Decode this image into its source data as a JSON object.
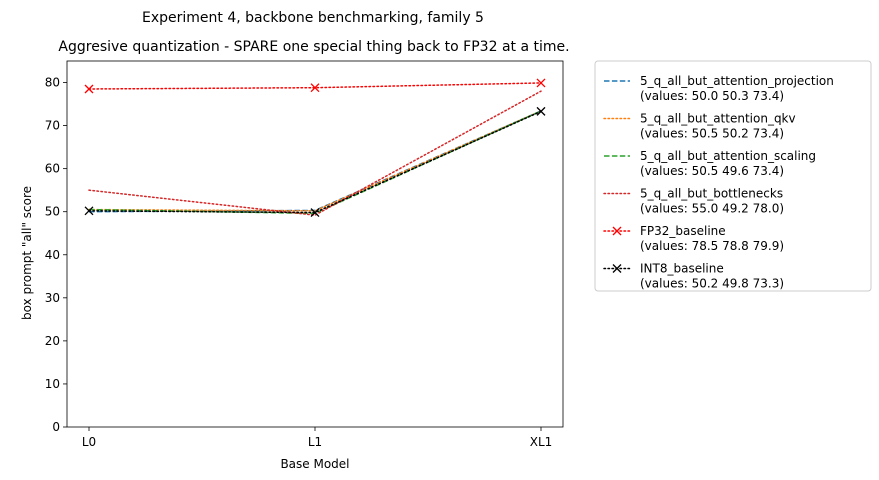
{
  "chart_data": {
    "type": "line",
    "suptitle": "Experiment 4, backbone benchmarking, family 5",
    "title": "Aggresive quantization - SPARE one special thing back to FP32 at a time.",
    "xlabel": "Base Model",
    "ylabel": "box prompt \"all\" score",
    "categories": [
      "L0",
      "L1",
      "XL1"
    ],
    "ylim": [
      0,
      85
    ],
    "yticks": [
      0,
      10,
      20,
      30,
      40,
      50,
      60,
      70,
      80
    ],
    "grid": false,
    "legend_position": "outside-upper-right",
    "series": [
      {
        "name": "5_q_all_but_attention_projection",
        "legend_values": "(values: 50.0 50.3 73.4)",
        "values": [
          50.0,
          50.3,
          73.4
        ],
        "color": "#1f77b4",
        "dash": "dashed",
        "marker": "none"
      },
      {
        "name": "5_q_all_but_attention_qkv",
        "legend_values": "(values: 50.5 50.2 73.4)",
        "values": [
          50.5,
          50.2,
          73.4
        ],
        "color": "#ff7f0e",
        "dash": "dotted",
        "marker": "none"
      },
      {
        "name": "5_q_all_but_attention_scaling",
        "legend_values": "(values: 50.5 49.6 73.4)",
        "values": [
          50.5,
          49.6,
          73.4
        ],
        "color": "#2ca02c",
        "dash": "dashed",
        "marker": "none"
      },
      {
        "name": "5_q_all_but_bottlenecks",
        "legend_values": "(values: 55.0 49.2 78.0)",
        "values": [
          55.0,
          49.2,
          78.0
        ],
        "color": "#d62728",
        "dash": "dotted",
        "marker": "none"
      },
      {
        "name": "FP32_baseline",
        "legend_values": "(values: 78.5 78.8 79.9)",
        "values": [
          78.5,
          78.8,
          79.9
        ],
        "color": "#ff0000",
        "dash": "dotted",
        "marker": "x"
      },
      {
        "name": "INT8_baseline",
        "legend_values": "(values: 50.2 49.8 73.3)",
        "values": [
          50.2,
          49.8,
          73.3
        ],
        "color": "#000000",
        "dash": "dotted",
        "marker": "x"
      }
    ]
  }
}
